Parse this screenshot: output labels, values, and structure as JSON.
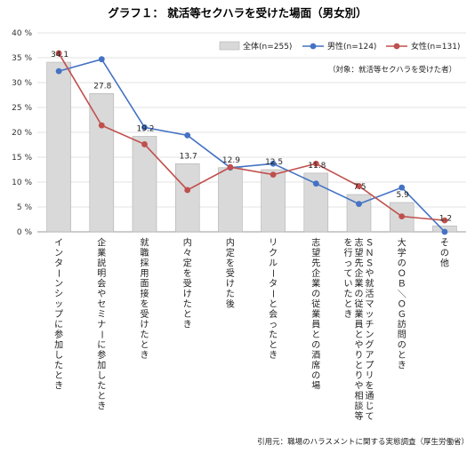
{
  "chart_data": {
    "type": "bar",
    "title": "グラフ１： 就活等セクハラを受けた場面（男女別）",
    "note": "（対象：就活等セクハラを受けた者）",
    "source": "引用元：職場のハラスメントに関する実態調査（厚生労働省）",
    "y_tick_labels": [
      "0 %",
      "5 %",
      "10 %",
      "15 %",
      "20 %",
      "25 %",
      "30 %",
      "35 %",
      "40 %"
    ],
    "ylim": [
      0,
      40
    ],
    "categories": [
      "インターンシップに参加したとき",
      "企業説明会やセミナーに参加したとき",
      "就職採用面接を受けたとき",
      "内々定を受けたとき",
      "内定を受けた後",
      "リクルーターと会ったとき",
      "志望先企業の従業員との酒席の場",
      "ＳＮＳや就活マッチングアプリを通じて志望先企業の従業員とやりとりや相談等を行っていたとき",
      "大学のＯＢ／ＯＧ訪問のとき",
      "その他"
    ],
    "series": [
      {
        "name": "全体(n=255)",
        "kind": "bar",
        "color": "#d9d9d9",
        "values": [
          34.1,
          27.8,
          19.2,
          13.7,
          12.9,
          12.5,
          11.8,
          7.5,
          5.9,
          1.2
        ],
        "labels": [
          "34.1",
          "27.8",
          "19.2",
          "13.7",
          "12.9",
          "12.5",
          "11.8",
          "7.5",
          "5.9",
          "1.2"
        ]
      },
      {
        "name": "男性(n=124)",
        "kind": "line",
        "color": "#4472c4",
        "values": [
          32.3,
          34.7,
          21.0,
          19.4,
          12.9,
          13.7,
          9.7,
          5.6,
          8.9,
          0.0
        ]
      },
      {
        "name": "女性(n=131)",
        "kind": "line",
        "color": "#c0504d",
        "values": [
          35.9,
          21.4,
          17.6,
          8.4,
          13.0,
          11.5,
          13.7,
          9.2,
          3.1,
          2.3
        ]
      }
    ]
  }
}
